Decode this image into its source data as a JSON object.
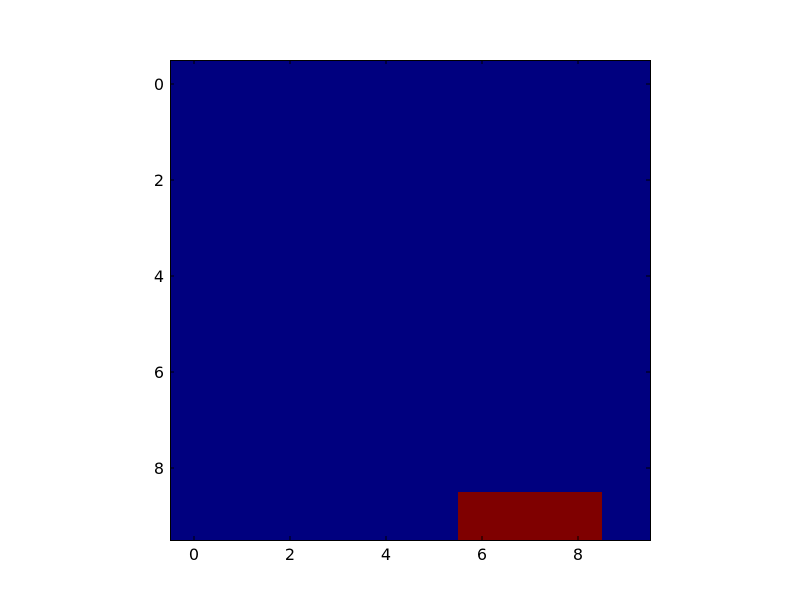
{
  "chart_data": {
    "type": "heatmap",
    "title": "",
    "xlabel": "",
    "ylabel": "",
    "x_ticks": [
      "0",
      "2",
      "4",
      "6",
      "8"
    ],
    "y_ticks": [
      "0",
      "2",
      "4",
      "6",
      "8"
    ],
    "xlim": [
      -0.5,
      9.5
    ],
    "ylim": [
      9.5,
      -0.5
    ],
    "rows": 10,
    "cols": 10,
    "colormap": {
      "low": "#00007f",
      "high": "#7f0000"
    },
    "values": [
      [
        0,
        0,
        0,
        0,
        0,
        0,
        0,
        0,
        0,
        0
      ],
      [
        0,
        0,
        0,
        0,
        0,
        0,
        0,
        0,
        0,
        0
      ],
      [
        0,
        0,
        0,
        0,
        0,
        0,
        0,
        0,
        0,
        0
      ],
      [
        0,
        0,
        0,
        0,
        0,
        0,
        0,
        0,
        0,
        0
      ],
      [
        0,
        0,
        0,
        0,
        0,
        0,
        0,
        0,
        0,
        0
      ],
      [
        0,
        0,
        0,
        0,
        0,
        0,
        0,
        0,
        0,
        0
      ],
      [
        0,
        0,
        0,
        0,
        0,
        0,
        0,
        0,
        0,
        0
      ],
      [
        0,
        0,
        0,
        0,
        0,
        0,
        0,
        0,
        0,
        0
      ],
      [
        0,
        0,
        0,
        0,
        0,
        0,
        0,
        0,
        0,
        0
      ],
      [
        0,
        0,
        0,
        0,
        0,
        0,
        1,
        1,
        1,
        0
      ]
    ],
    "grid": false,
    "legend": "none"
  }
}
